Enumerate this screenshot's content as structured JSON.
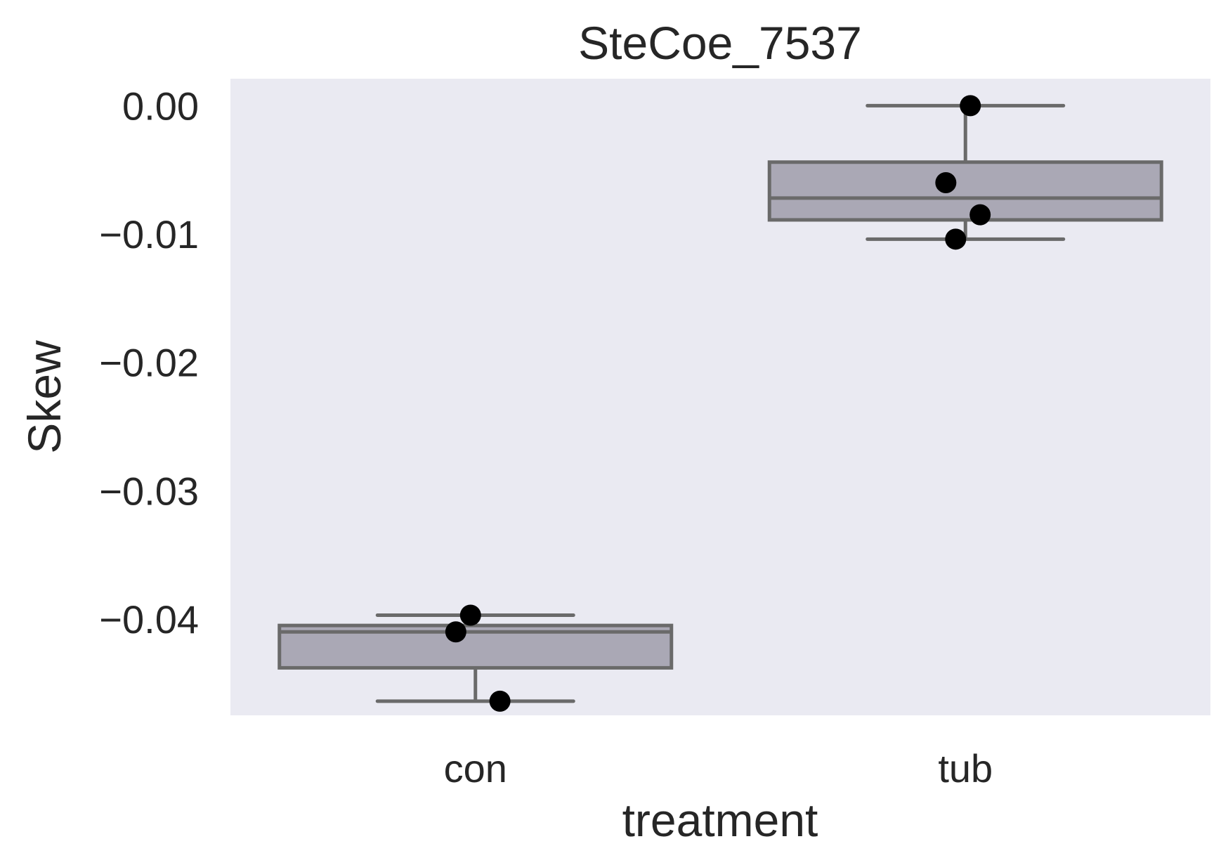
{
  "chart_data": {
    "type": "box",
    "title": "SteCoe_7537",
    "xlabel": "treatment",
    "ylabel": "Skew",
    "categories": [
      "con",
      "tub"
    ],
    "ylim": [
      -0.0475,
      0.0021
    ],
    "yticks": [
      0.0,
      -0.01,
      -0.02,
      -0.03,
      -0.04
    ],
    "ytick_labels": [
      "0.00",
      "−0.01",
      "−0.02",
      "−0.03",
      "−0.04"
    ],
    "grid": false,
    "boxes": [
      {
        "category": "con",
        "whisker_low": -0.0464,
        "q1": -0.0438,
        "median": -0.041,
        "q3": -0.0405,
        "whisker_high": -0.0397,
        "points": [
          -0.0397,
          -0.041,
          -0.0464
        ],
        "jitter": [
          -0.01,
          -0.04,
          0.05
        ]
      },
      {
        "category": "tub",
        "whisker_low": -0.0104,
        "q1": -0.0089,
        "median": -0.0072,
        "q3": -0.0044,
        "whisker_high": 0.0,
        "points": [
          0.0,
          -0.006,
          -0.0085,
          -0.0104
        ],
        "jitter": [
          0.01,
          -0.04,
          0.03,
          -0.02
        ]
      }
    ],
    "colors": {
      "background": "#eaeaf2",
      "box_fill": "#aaa8b5",
      "box_line": "#6a6a6a",
      "point": "#000000",
      "text": "#262626"
    }
  }
}
